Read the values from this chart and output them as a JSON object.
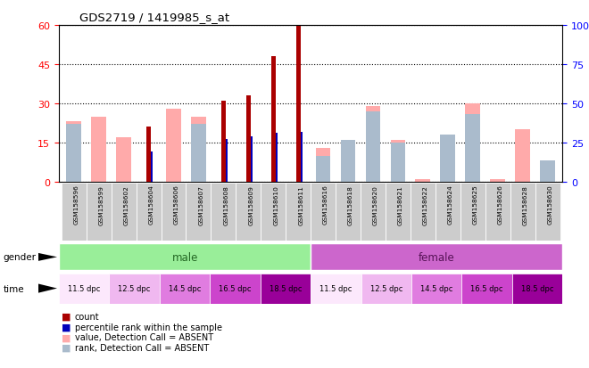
{
  "title": "GDS2719 / 1419985_s_at",
  "samples": [
    "GSM158596",
    "GSM158599",
    "GSM158602",
    "GSM158604",
    "GSM158606",
    "GSM158607",
    "GSM158608",
    "GSM158609",
    "GSM158610",
    "GSM158611",
    "GSM158616",
    "GSM158618",
    "GSM158620",
    "GSM158621",
    "GSM158622",
    "GSM158624",
    "GSM158625",
    "GSM158626",
    "GSM158628",
    "GSM158630"
  ],
  "count_values": [
    0,
    0,
    0,
    21,
    0,
    0,
    31,
    33,
    48,
    60,
    0,
    0,
    0,
    0,
    0,
    0,
    0,
    0,
    0,
    0
  ],
  "percentile_values": [
    0,
    0,
    0,
    19,
    0,
    0,
    27,
    29,
    31,
    32,
    0,
    0,
    0,
    0,
    0,
    0,
    0,
    0,
    0,
    0
  ],
  "absent_value_values": [
    23,
    25,
    17,
    0,
    28,
    25,
    0,
    0,
    0,
    0,
    13,
    14,
    29,
    16,
    1,
    16,
    30,
    1,
    20,
    0
  ],
  "absent_rank_values": [
    22,
    0,
    0,
    0,
    0,
    22,
    0,
    0,
    0,
    0,
    10,
    16,
    27,
    15,
    0,
    18,
    26,
    0,
    0,
    8
  ],
  "ylim_left": [
    0,
    60
  ],
  "ylim_right": [
    0,
    100
  ],
  "yticks_left": [
    0,
    15,
    30,
    45,
    60
  ],
  "yticks_right": [
    0,
    25,
    50,
    75,
    100
  ],
  "color_count": "#aa0000",
  "color_percentile": "#0000bb",
  "color_absent_value": "#ffaaaa",
  "color_absent_rank": "#aabbcc",
  "color_male_bg": "#99ee99",
  "color_female_bg": "#cc66cc",
  "color_male_text": "#226622",
  "color_female_text": "#551155",
  "time_colors": [
    "#fce8fc",
    "#f0b8f0",
    "#e07ce0",
    "#cc44cc",
    "#990099",
    "#fce8fc",
    "#f0b8f0",
    "#e07ce0",
    "#cc44cc",
    "#990099"
  ],
  "time_labels": [
    "11.5 dpc",
    "12.5 dpc",
    "14.5 dpc",
    "16.5 dpc",
    "18.5 dpc",
    "11.5 dpc",
    "12.5 dpc",
    "14.5 dpc",
    "16.5 dpc",
    "18.5 dpc"
  ],
  "legend_items": [
    "count",
    "percentile rank within the sample",
    "value, Detection Call = ABSENT",
    "rank, Detection Call = ABSENT"
  ],
  "legend_colors": [
    "#aa0000",
    "#0000bb",
    "#ffaaaa",
    "#aabbcc"
  ]
}
